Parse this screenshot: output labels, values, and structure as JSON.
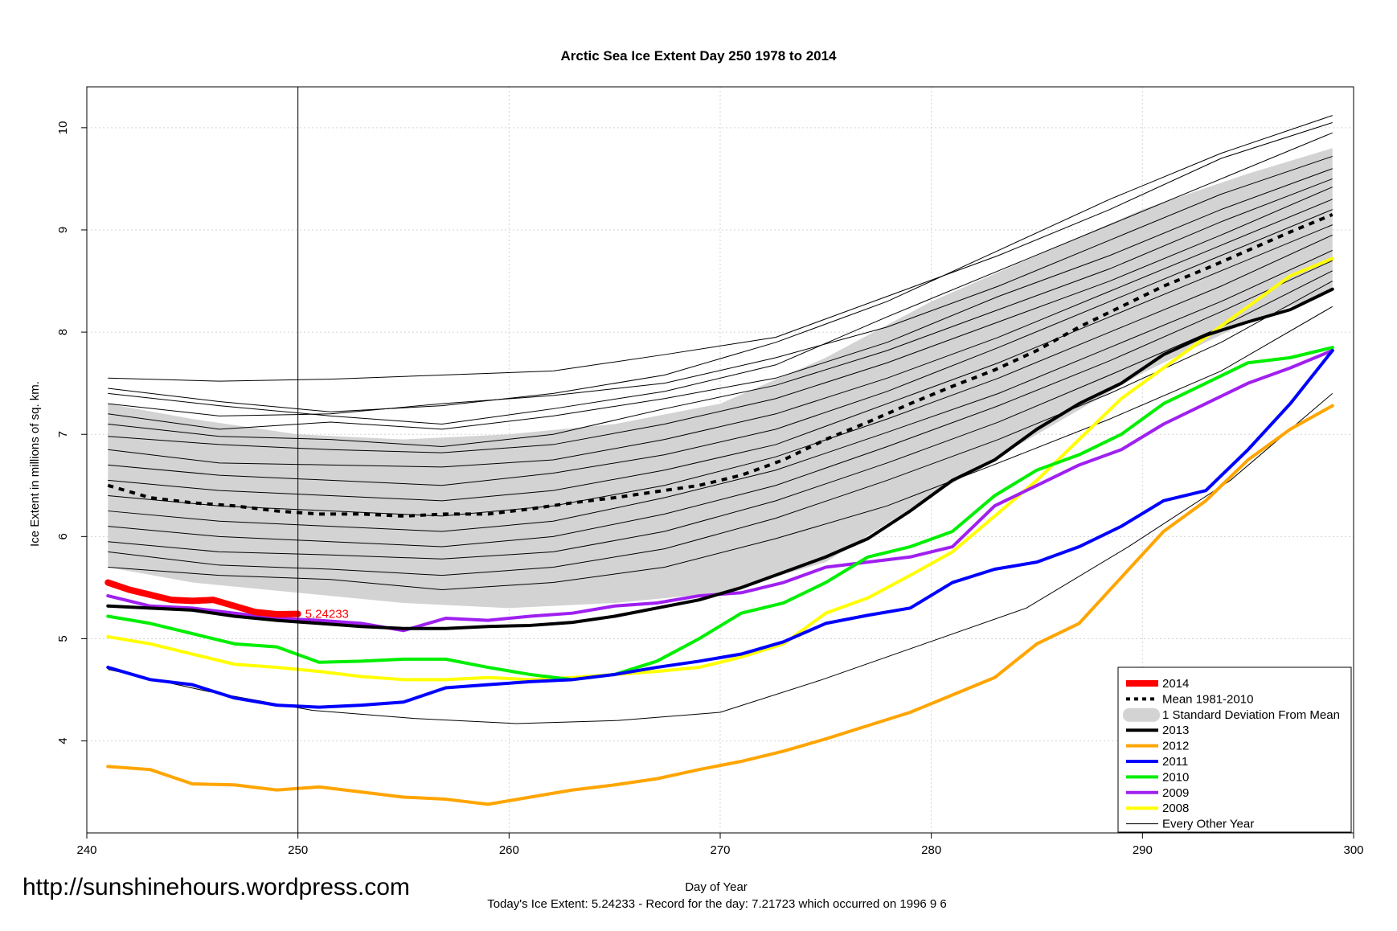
{
  "watermark": "http://sunshinehours.wordpress.com",
  "footer": "Today's Ice Extent: 5.24233  - Record for the day: 7.21723 which occurred on 1996 9 6",
  "colors": {
    "y2014": "#ff0000",
    "mean": "#000000",
    "band": "#d3d3d3",
    "y2013": "#000000",
    "y2012": "#ffa500",
    "y2011": "#0000ff",
    "y2010": "#00ee00",
    "y2009": "#a020f0",
    "y2008": "#ffff00",
    "other": "#000000"
  },
  "chart_data": {
    "type": "line",
    "title": "Arctic Sea Ice Extent Day 250 1978 to 2014",
    "xlabel": "Day of Year",
    "ylabel": "Ice Extent in millions of sq. km.",
    "xlim": [
      240,
      300
    ],
    "ylim": [
      3.1,
      10.4
    ],
    "xticks": [
      240,
      250,
      260,
      270,
      280,
      290,
      300
    ],
    "yticks": [
      4,
      5,
      6,
      7,
      8,
      9,
      10
    ],
    "grid": true,
    "vline_x": 250,
    "annotation": {
      "text": "5.24233",
      "x": 250,
      "y": 5.24233
    },
    "legend_position": "bottom-right",
    "legend": [
      "2014",
      "Mean 1981-2010",
      "1 Standard Deviation From Mean",
      "2013",
      "2012",
      "2011",
      "2010",
      "2009",
      "2008",
      "Every Other Year"
    ],
    "std_band": {
      "x": [
        241,
        245,
        250,
        255,
        260,
        265,
        270,
        275,
        280,
        285,
        290,
        295,
        299
      ],
      "upper": [
        7.3,
        7.15,
        7.0,
        6.95,
        7.0,
        7.1,
        7.3,
        7.75,
        8.3,
        8.75,
        9.2,
        9.55,
        9.8
      ],
      "lower": [
        5.7,
        5.55,
        5.45,
        5.35,
        5.3,
        5.35,
        5.45,
        5.75,
        6.4,
        7.0,
        7.6,
        8.1,
        8.4
      ]
    },
    "series": [
      {
        "name": "Mean 1981-2010",
        "x": [
          241,
          243,
          245,
          247,
          249,
          251,
          253,
          255,
          257,
          259,
          261,
          263,
          265,
          267,
          269,
          271,
          273,
          275,
          277,
          279,
          281,
          283,
          285,
          287,
          289,
          291,
          293,
          295,
          297,
          299
        ],
        "y": [
          6.5,
          6.38,
          6.33,
          6.3,
          6.25,
          6.22,
          6.22,
          6.2,
          6.22,
          6.22,
          6.27,
          6.33,
          6.38,
          6.44,
          6.5,
          6.6,
          6.75,
          6.95,
          7.12,
          7.3,
          7.47,
          7.63,
          7.82,
          8.05,
          8.25,
          8.45,
          8.62,
          8.8,
          8.98,
          9.15
        ]
      },
      {
        "name": "2013",
        "x": [
          241,
          243,
          245,
          247,
          249,
          251,
          253,
          255,
          257,
          259,
          261,
          263,
          265,
          267,
          269,
          271,
          273,
          275,
          277,
          279,
          281,
          283,
          285,
          287,
          289,
          291,
          293,
          295,
          297,
          299
        ],
        "y": [
          5.32,
          5.3,
          5.28,
          5.22,
          5.18,
          5.15,
          5.12,
          5.1,
          5.1,
          5.12,
          5.13,
          5.16,
          5.22,
          5.3,
          5.38,
          5.5,
          5.65,
          5.8,
          5.98,
          6.25,
          6.55,
          6.75,
          7.05,
          7.3,
          7.5,
          7.78,
          7.97,
          8.1,
          8.22,
          8.42
        ]
      },
      {
        "name": "2012",
        "x": [
          241,
          243,
          245,
          247,
          249,
          251,
          253,
          255,
          257,
          259,
          261,
          263,
          265,
          267,
          269,
          271,
          273,
          275,
          277,
          279,
          281,
          283,
          285,
          287,
          289,
          291,
          293,
          295,
          297,
          299
        ],
        "y": [
          3.75,
          3.72,
          3.58,
          3.57,
          3.52,
          3.55,
          3.5,
          3.45,
          3.43,
          3.38,
          3.45,
          3.52,
          3.57,
          3.63,
          3.72,
          3.8,
          3.9,
          4.02,
          4.15,
          4.28,
          4.45,
          4.62,
          4.95,
          5.15,
          5.6,
          6.05,
          6.35,
          6.75,
          7.05,
          7.28
        ]
      },
      {
        "name": "2011",
        "x": [
          241,
          243,
          245,
          247,
          249,
          251,
          253,
          255,
          257,
          259,
          261,
          263,
          265,
          267,
          269,
          271,
          273,
          275,
          277,
          279,
          281,
          283,
          285,
          287,
          289,
          291,
          293,
          295,
          297,
          299
        ],
        "y": [
          4.72,
          4.6,
          4.55,
          4.42,
          4.35,
          4.33,
          4.35,
          4.38,
          4.52,
          4.55,
          4.58,
          4.6,
          4.65,
          4.72,
          4.78,
          4.85,
          4.97,
          5.15,
          5.23,
          5.3,
          5.55,
          5.68,
          5.75,
          5.9,
          6.1,
          6.35,
          6.45,
          6.85,
          7.3,
          7.82
        ]
      },
      {
        "name": "2010",
        "x": [
          241,
          243,
          245,
          247,
          249,
          251,
          253,
          255,
          257,
          259,
          261,
          263,
          265,
          267,
          269,
          271,
          273,
          275,
          277,
          279,
          281,
          283,
          285,
          287,
          289,
          291,
          293,
          295,
          297,
          299
        ],
        "y": [
          5.22,
          5.15,
          5.05,
          4.95,
          4.92,
          4.77,
          4.78,
          4.8,
          4.8,
          4.72,
          4.65,
          4.6,
          4.65,
          4.78,
          5.0,
          5.25,
          5.35,
          5.55,
          5.8,
          5.9,
          6.05,
          6.4,
          6.65,
          6.8,
          7.0,
          7.3,
          7.5,
          7.7,
          7.75,
          7.85
        ]
      },
      {
        "name": "2009",
        "x": [
          241,
          243,
          245,
          247,
          249,
          251,
          253,
          255,
          257,
          259,
          261,
          263,
          265,
          267,
          269,
          271,
          273,
          275,
          277,
          279,
          281,
          283,
          285,
          287,
          289,
          291,
          293,
          295,
          297,
          299
        ],
        "y": [
          5.42,
          5.32,
          5.3,
          5.25,
          5.2,
          5.18,
          5.15,
          5.08,
          5.2,
          5.18,
          5.22,
          5.25,
          5.32,
          5.35,
          5.42,
          5.45,
          5.55,
          5.7,
          5.75,
          5.8,
          5.9,
          6.3,
          6.5,
          6.7,
          6.85,
          7.1,
          7.3,
          7.5,
          7.65,
          7.82
        ]
      },
      {
        "name": "2008",
        "x": [
          241,
          243,
          245,
          247,
          249,
          251,
          253,
          255,
          257,
          259,
          261,
          263,
          265,
          267,
          269,
          271,
          273,
          275,
          277,
          279,
          281,
          283,
          285,
          287,
          289,
          291,
          293,
          295,
          297,
          299
        ],
        "y": [
          5.02,
          4.95,
          4.85,
          4.75,
          4.72,
          4.68,
          4.63,
          4.6,
          4.6,
          4.62,
          4.6,
          4.62,
          4.65,
          4.68,
          4.72,
          4.82,
          4.95,
          5.25,
          5.4,
          5.62,
          5.85,
          6.2,
          6.55,
          6.95,
          7.35,
          7.65,
          7.95,
          8.25,
          8.55,
          8.72
        ]
      },
      {
        "name": "2014",
        "x": [
          241,
          242,
          243,
          244,
          245,
          246,
          247,
          248,
          249,
          250
        ],
        "y": [
          5.55,
          5.48,
          5.43,
          5.38,
          5.37,
          5.38,
          5.32,
          5.26,
          5.24,
          5.24233
        ]
      }
    ],
    "every_other_year_lines": [
      [
        7.55,
        7.52,
        7.54,
        7.58,
        7.62,
        7.78,
        7.95,
        8.35,
        8.75,
        9.2,
        9.7,
        10.05
      ],
      [
        7.45,
        7.32,
        7.22,
        7.28,
        7.4,
        7.58,
        7.9,
        8.3,
        8.8,
        9.3,
        9.75,
        10.12
      ],
      [
        7.4,
        7.28,
        7.18,
        7.1,
        7.25,
        7.42,
        7.68,
        8.15,
        8.6,
        9.05,
        9.5,
        9.95
      ],
      [
        7.3,
        7.18,
        7.2,
        7.3,
        7.38,
        7.5,
        7.75,
        8.05,
        8.45,
        8.9,
        9.35,
        9.72
      ],
      [
        7.2,
        7.05,
        7.12,
        7.05,
        7.18,
        7.35,
        7.55,
        7.9,
        8.35,
        8.75,
        9.2,
        9.6
      ],
      [
        7.1,
        6.98,
        6.95,
        6.88,
        7.0,
        7.25,
        7.48,
        7.82,
        8.22,
        8.62,
        9.08,
        9.5
      ],
      [
        6.98,
        6.9,
        6.85,
        6.82,
        6.9,
        7.1,
        7.35,
        7.7,
        8.1,
        8.5,
        8.95,
        9.42
      ],
      [
        6.85,
        6.72,
        6.7,
        6.68,
        6.75,
        6.95,
        7.2,
        7.55,
        7.95,
        8.4,
        8.85,
        9.3
      ],
      [
        6.7,
        6.6,
        6.55,
        6.5,
        6.62,
        6.8,
        7.05,
        7.42,
        7.85,
        8.3,
        8.75,
        9.2
      ],
      [
        6.55,
        6.45,
        6.4,
        6.35,
        6.45,
        6.65,
        6.9,
        7.3,
        7.7,
        8.15,
        8.6,
        9.05
      ],
      [
        6.4,
        6.3,
        6.25,
        6.2,
        6.3,
        6.5,
        6.78,
        7.15,
        7.55,
        8.0,
        8.45,
        8.95
      ],
      [
        6.25,
        6.15,
        6.1,
        6.05,
        6.15,
        6.38,
        6.65,
        7.02,
        7.4,
        7.85,
        8.3,
        8.8
      ],
      [
        6.1,
        6.0,
        5.95,
        5.9,
        6.0,
        6.22,
        6.5,
        6.88,
        7.28,
        7.72,
        8.2,
        8.7
      ],
      [
        5.95,
        5.85,
        5.82,
        5.78,
        5.85,
        6.05,
        6.35,
        6.72,
        7.12,
        7.58,
        8.05,
        8.6
      ],
      [
        5.85,
        5.72,
        5.68,
        5.62,
        5.7,
        5.88,
        6.18,
        6.55,
        6.95,
        7.4,
        7.9,
        8.5
      ],
      [
        5.7,
        5.62,
        5.58,
        5.48,
        5.55,
        5.7,
        5.98,
        6.3,
        6.72,
        7.15,
        7.62,
        8.25
      ],
      [
        4.7,
        4.48,
        4.3,
        4.22,
        4.17,
        4.2,
        4.28,
        4.6,
        4.95,
        5.3,
        5.9,
        6.55,
        7.4
      ]
    ]
  }
}
